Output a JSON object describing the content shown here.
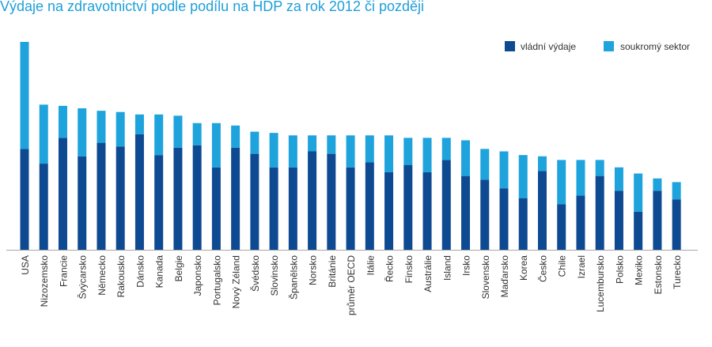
{
  "chart_data": {
    "type": "bar",
    "stacked": true,
    "title": "Výdaje na zdravotnictví podle podílu na HDP za rok 2012 či později",
    "xlabel": "",
    "ylabel": "",
    "grid": false,
    "legend_position": "top-right",
    "ylim": [
      0,
      17
    ],
    "categories": [
      "USA",
      "Nizozemsko",
      "Francie",
      "Švýcarsko",
      "Německo",
      "Rakousko",
      "Dánsko",
      "Kanada",
      "Belgie",
      "Japonsko",
      "Portugalsko",
      "Nový Zéland",
      "Švédsko",
      "Slovinsko",
      "Španělsko",
      "Norsko",
      "Británie",
      "průměr OECD",
      "Itálie",
      "Řecko",
      "Finsko",
      "Austrálie",
      "Island",
      "Irsko",
      "Slovensko",
      "Maďarsko",
      "Korea",
      "Česko",
      "Chile",
      "Izrael",
      "Lucembursko",
      "Polsko",
      "Mexiko",
      "Estonsko",
      "Turecko"
    ],
    "series": [
      {
        "name": "vládní výdaje",
        "color": "#0d4a91",
        "values": [
          8.2,
          7.0,
          9.1,
          7.6,
          8.7,
          8.4,
          9.4,
          7.7,
          8.3,
          8.5,
          6.7,
          8.3,
          7.8,
          6.7,
          6.7,
          8.0,
          7.8,
          6.7,
          7.1,
          6.3,
          6.9,
          6.3,
          7.3,
          6.0,
          5.7,
          5.0,
          4.2,
          6.4,
          3.7,
          4.4,
          6.0,
          4.8,
          3.1,
          4.8,
          4.1
        ]
      },
      {
        "name": "soukromý sektor",
        "color": "#1ea3dc",
        "values": [
          8.7,
          4.8,
          2.6,
          3.9,
          2.6,
          2.8,
          1.6,
          3.3,
          2.6,
          1.8,
          3.6,
          1.8,
          1.8,
          2.8,
          2.6,
          1.3,
          1.5,
          2.6,
          2.2,
          3.0,
          2.2,
          2.8,
          1.8,
          2.9,
          2.5,
          3.0,
          3.5,
          1.2,
          3.6,
          2.9,
          1.3,
          1.9,
          3.1,
          1.0,
          1.4
        ]
      }
    ],
    "axis_color": "#a6a6a6"
  }
}
